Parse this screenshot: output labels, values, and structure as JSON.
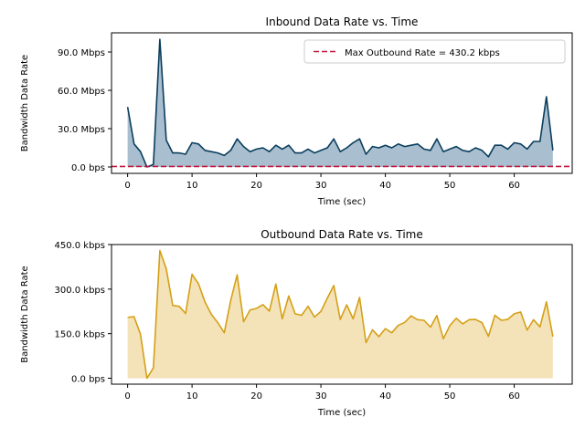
{
  "chart_data": [
    {
      "type": "area",
      "title": "Inbound Data Rate vs. Time",
      "xlabel": "Time (sec)",
      "ylabel": "Bandwidth Data Rate",
      "xlim": [
        -2.5,
        69
      ],
      "ylim": [
        -5.0,
        105.0
      ],
      "xticks": [
        0,
        10,
        20,
        30,
        40,
        50,
        60
      ],
      "yticks": [
        0.0,
        30.0,
        60.0,
        90.0
      ],
      "ytick_labels": [
        "0.0 bps",
        "30.0 Mbps",
        "60.0 Mbps",
        "90.0 Mbps"
      ],
      "units": "Mbps",
      "series": [
        {
          "name": "",
          "color": "#0a3d5c",
          "fill": "#a9bfcf",
          "x": [
            0,
            1,
            2,
            3,
            4,
            5,
            6,
            7,
            8,
            9,
            10,
            11,
            12,
            13,
            14,
            15,
            16,
            17,
            18,
            19,
            20,
            21,
            22,
            23,
            24,
            25,
            26,
            27,
            28,
            29,
            30,
            31,
            32,
            33,
            34,
            35,
            36,
            37,
            38,
            39,
            40,
            41,
            42,
            43,
            44,
            45,
            46,
            47,
            48,
            49,
            50,
            51,
            52,
            53,
            54,
            55,
            56,
            57,
            58,
            59,
            60,
            61,
            62,
            63,
            64,
            65,
            66
          ],
          "values": [
            47,
            18,
            12,
            0,
            2,
            100,
            21,
            11,
            11,
            10,
            19,
            18,
            13,
            12,
            11,
            9,
            13,
            22,
            16,
            12,
            14,
            15,
            12,
            17,
            14,
            17,
            11,
            11,
            14,
            11,
            13,
            15,
            22,
            12,
            15,
            19,
            22,
            10,
            16,
            15,
            17,
            15,
            18,
            16,
            17,
            18,
            14,
            13,
            22,
            12,
            14,
            16,
            13,
            12,
            15,
            13,
            8,
            17,
            17,
            14,
            19,
            18,
            14,
            20,
            20,
            55,
            13
          ]
        }
      ],
      "reference_line": {
        "label": "Max Outbound Rate = 430.2 kbps",
        "value": 0.4302,
        "color": "#c0143c",
        "style": "dashed"
      },
      "legend_position": "upper right"
    },
    {
      "type": "area",
      "title": "Outbound Data Rate vs. Time",
      "xlabel": "Time (sec)",
      "ylabel": "Bandwidth Data Rate",
      "xlim": [
        -2.5,
        69
      ],
      "ylim": [
        -20,
        450
      ],
      "xticks": [
        0,
        10,
        20,
        30,
        40,
        50,
        60
      ],
      "yticks": [
        0.0,
        150.0,
        300.0,
        450.0
      ],
      "ytick_labels": [
        "0.0 bps",
        "150.0 kbps",
        "300.0 kbps",
        "450.0 kbps"
      ],
      "units": "kbps",
      "series": [
        {
          "name": "",
          "color": "#d4a017",
          "fill": "#f4e2b8",
          "x": [
            0,
            1,
            2,
            3,
            4,
            5,
            6,
            7,
            8,
            9,
            10,
            11,
            12,
            13,
            14,
            15,
            16,
            17,
            18,
            19,
            20,
            21,
            22,
            23,
            24,
            25,
            26,
            27,
            28,
            29,
            30,
            31,
            32,
            33,
            34,
            35,
            36,
            37,
            38,
            39,
            40,
            41,
            42,
            43,
            44,
            45,
            46,
            47,
            48,
            49,
            50,
            51,
            52,
            53,
            54,
            55,
            56,
            57,
            58,
            59,
            60,
            61,
            62,
            63,
            64,
            65,
            66
          ],
          "values": [
            205,
            207,
            148,
            0,
            35,
            430,
            368,
            245,
            242,
            218,
            350,
            318,
            257,
            215,
            187,
            153,
            262,
            348,
            190,
            230,
            235,
            248,
            226,
            317,
            200,
            277,
            217,
            212,
            242,
            206,
            225,
            270,
            312,
            198,
            247,
            200,
            272,
            120,
            163,
            140,
            167,
            153,
            178,
            188,
            210,
            197,
            195,
            172,
            211,
            133,
            177,
            202,
            183,
            197,
            198,
            187,
            141,
            212,
            195,
            198,
            217,
            223,
            162,
            197,
            173,
            257,
            140
          ]
        }
      ]
    }
  ]
}
